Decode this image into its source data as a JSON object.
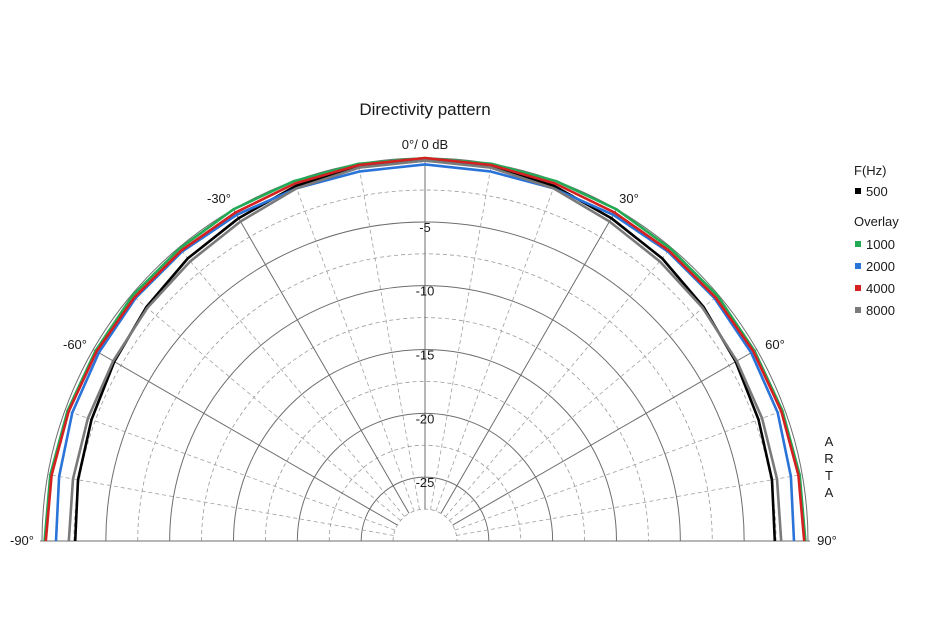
{
  "chart_data": {
    "type": "polar",
    "title": "Directivity pattern",
    "center_label": "0°/ 0 dB",
    "watermark": "ARTA",
    "angle_range": [
      -90,
      90
    ],
    "angle_labels": [
      "-90°",
      "-60°",
      "-30°",
      "30°",
      "60°",
      "90°"
    ],
    "radial_range_db": [
      -30,
      0
    ],
    "radial_labels": [
      "-5",
      "-10",
      "-15",
      "-20",
      "-25"
    ],
    "legend": {
      "header": "F(Hz)",
      "overlay_header": "Overlay",
      "position": "right"
    },
    "angles": [
      -90,
      -80,
      -70,
      -60,
      -50,
      -40,
      -30,
      -20,
      -10,
      0,
      10,
      20,
      30,
      40,
      50,
      60,
      70,
      80,
      90
    ],
    "series": [
      {
        "name": "500",
        "color": "#000000",
        "values": [
          -2.6,
          -2.4,
          -2.2,
          -1.9,
          -1.5,
          -1.1,
          -0.8,
          -0.4,
          -0.2,
          -0.2,
          -0.2,
          -0.4,
          -0.8,
          -1.1,
          -1.5,
          -1.9,
          -2.2,
          -2.4,
          -2.6
        ]
      },
      {
        "name": "1000",
        "color": "#22aa55",
        "values": [
          -0.2,
          -0.2,
          -0.2,
          -0.2,
          -0.1,
          -0.1,
          0.0,
          0.0,
          0.0,
          0.0,
          0.0,
          0.0,
          0.0,
          -0.1,
          -0.1,
          -0.2,
          -0.2,
          -0.2,
          -0.2
        ]
      },
      {
        "name": "2000",
        "color": "#2a73d8",
        "values": [
          -1.1,
          -0.9,
          -0.6,
          -0.5,
          -0.4,
          -0.4,
          -0.5,
          -0.6,
          -0.6,
          -0.5,
          -0.6,
          -0.6,
          -0.5,
          -0.4,
          -0.4,
          -0.5,
          -0.6,
          -0.9,
          -1.1
        ]
      },
      {
        "name": "4000",
        "color": "#d42020",
        "values": [
          -0.3,
          -0.3,
          -0.3,
          -0.3,
          -0.3,
          -0.3,
          -0.3,
          -0.2,
          -0.1,
          0.0,
          -0.1,
          -0.2,
          -0.3,
          -0.3,
          -0.3,
          -0.3,
          -0.3,
          -0.3,
          -0.3
        ]
      },
      {
        "name": "8000",
        "color": "#7a7a7a",
        "values": [
          -2.1,
          -2.0,
          -1.9,
          -1.8,
          -1.6,
          -1.4,
          -1.1,
          -0.6,
          -0.3,
          -0.2,
          -0.3,
          -0.6,
          -1.1,
          -1.4,
          -1.6,
          -1.8,
          -1.9,
          -2.0,
          -2.1
        ]
      }
    ]
  }
}
